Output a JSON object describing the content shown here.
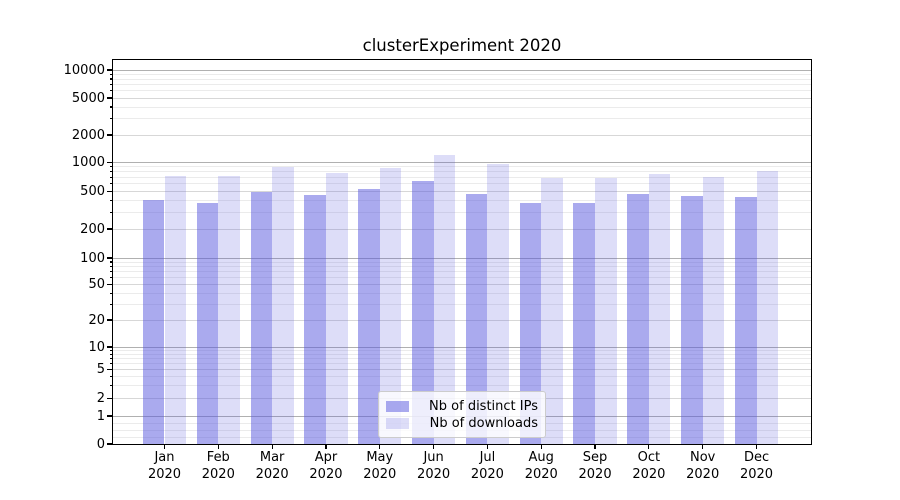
{
  "chart_data": {
    "type": "bar",
    "title": "clusterExperiment 2020",
    "months": [
      "Jan",
      "Feb",
      "Mar",
      "Apr",
      "May",
      "Jun",
      "Jul",
      "Aug",
      "Sep",
      "Oct",
      "Nov",
      "Dec"
    ],
    "year": "2020",
    "series": [
      {
        "name": "Nb of distinct IPs",
        "fill": "rgba(85,85,221,0.5)",
        "hex_on_white": "#aaaaee",
        "values": [
          410,
          380,
          490,
          460,
          535,
          640,
          465,
          380,
          375,
          475,
          445,
          440
        ]
      },
      {
        "name": "Nb of downloads",
        "fill": "rgba(85,85,221,0.2)",
        "hex_on_white": "#ddddf8",
        "values": [
          730,
          730,
          895,
          770,
          880,
          1200,
          955,
          695,
          685,
          755,
          710,
          820
        ]
      }
    ],
    "yscale": "symlog",
    "yticks": [
      0,
      1,
      2,
      5,
      10,
      20,
      50,
      100,
      200,
      500,
      1000,
      2000,
      5000,
      10000
    ],
    "ylim": [
      0,
      12500
    ],
    "grid": true,
    "gridline_colors": {
      "decade": "#b0b0b0",
      "mid": "#d7d7d7",
      "minor": "#ebebeb"
    },
    "legend_position": "lower center",
    "axis_color": "#000000",
    "background_color": "#ffffff"
  }
}
